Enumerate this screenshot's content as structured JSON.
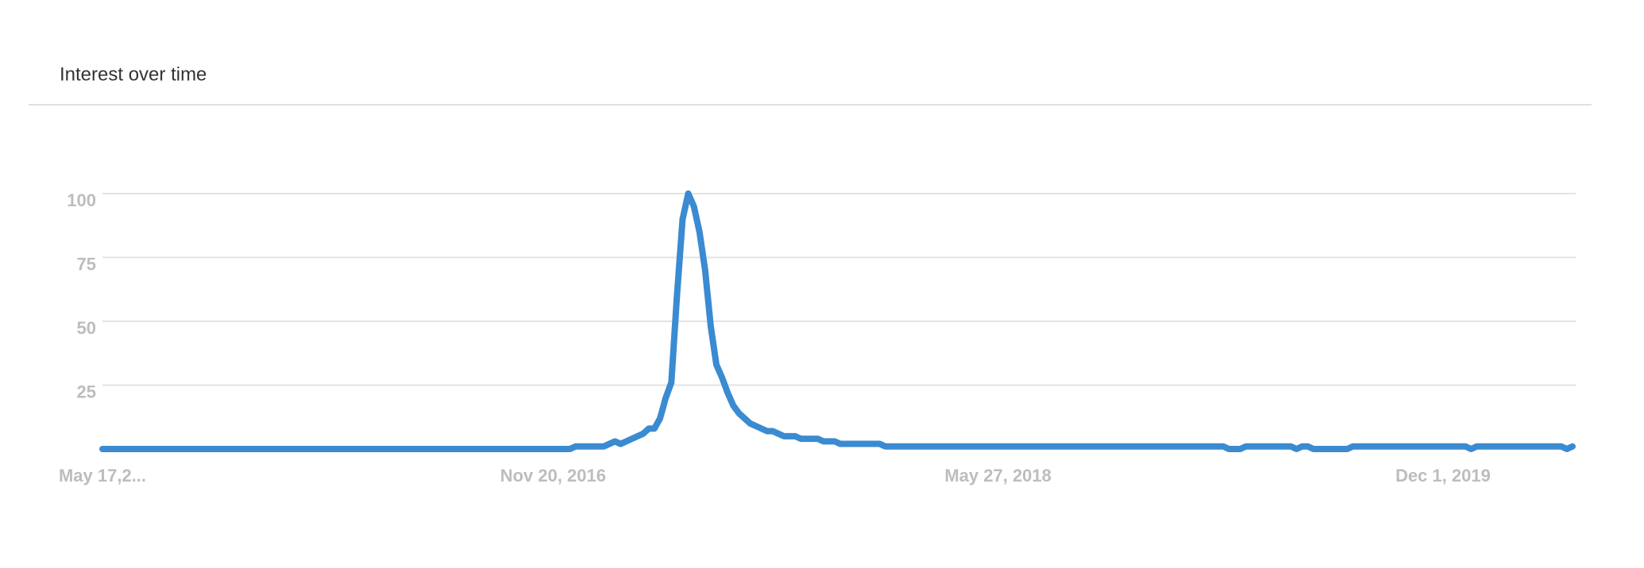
{
  "chart_data": {
    "type": "line",
    "title": "Interest over time",
    "color": "#3a8bd1",
    "grid": true,
    "ylim": [
      0,
      100
    ],
    "yticks": [
      25,
      50,
      75,
      100
    ],
    "categories": [
      "May 17,2...",
      null,
      null,
      null,
      null,
      null,
      null,
      null,
      null,
      null,
      null,
      null,
      null,
      null,
      null,
      null,
      null,
      null,
      null,
      null,
      null,
      null,
      null,
      null,
      null,
      null,
      null,
      null,
      null,
      null,
      null,
      null,
      null,
      null,
      null,
      null,
      null,
      null,
      null,
      null,
      null,
      null,
      null,
      null,
      null,
      null,
      null,
      null,
      null,
      null,
      null,
      null,
      null,
      null,
      null,
      null,
      null,
      null,
      null,
      null,
      null,
      null,
      null,
      null,
      null,
      null,
      null,
      null,
      null,
      null,
      null,
      null,
      null,
      null,
      null,
      null,
      null,
      null,
      null,
      null,
      "Nov 20, 2016",
      null,
      null,
      null,
      null,
      null,
      null,
      null,
      null,
      null,
      null,
      null,
      null,
      null,
      null,
      null,
      null,
      null,
      null,
      null,
      null,
      null,
      null,
      null,
      null,
      null,
      null,
      null,
      null,
      null,
      null,
      null,
      null,
      null,
      null,
      null,
      null,
      null,
      null,
      null,
      null,
      null,
      null,
      null,
      null,
      null,
      null,
      null,
      null,
      null,
      null,
      null,
      null,
      null,
      null,
      null,
      null,
      null,
      null,
      null,
      null,
      null,
      null,
      null,
      null,
      null,
      null,
      null,
      null,
      null,
      null,
      null,
      null,
      null,
      null,
      null,
      null,
      null,
      null,
      "May 27, 2018",
      null,
      null,
      null,
      null,
      null,
      null,
      null,
      null,
      null,
      null,
      null,
      null,
      null,
      null,
      null,
      null,
      null,
      null,
      null,
      null,
      null,
      null,
      null,
      null,
      null,
      null,
      null,
      null,
      null,
      null,
      null,
      null,
      null,
      null,
      null,
      null,
      null,
      null,
      null,
      null,
      null,
      null,
      null,
      null,
      null,
      null,
      null,
      null,
      null,
      null,
      null,
      null,
      null,
      null,
      null,
      null,
      null,
      null,
      null,
      null,
      null,
      null,
      null,
      null,
      null,
      null,
      null,
      null,
      null,
      null,
      null,
      null,
      null,
      null,
      null,
      null,
      null,
      null,
      "Dec 1, 2019",
      null,
      null,
      null,
      null,
      null,
      null,
      null,
      null,
      null,
      null,
      null,
      null,
      null,
      null,
      null,
      null,
      null,
      null,
      null,
      null,
      null,
      null,
      null
    ],
    "values": [
      0,
      0,
      0,
      0,
      0,
      0,
      0,
      0,
      0,
      0,
      0,
      0,
      0,
      0,
      0,
      0,
      0,
      0,
      0,
      0,
      0,
      0,
      0,
      0,
      0,
      0,
      0,
      0,
      0,
      0,
      0,
      0,
      0,
      0,
      0,
      0,
      0,
      0,
      0,
      0,
      0,
      0,
      0,
      0,
      0,
      0,
      0,
      0,
      0,
      0,
      0,
      0,
      0,
      0,
      0,
      0,
      0,
      0,
      0,
      0,
      0,
      0,
      0,
      0,
      0,
      0,
      0,
      0,
      0,
      0,
      0,
      0,
      0,
      0,
      0,
      0,
      0,
      0,
      0,
      0,
      0,
      0,
      0,
      0,
      1,
      1,
      1,
      1,
      1,
      1,
      2,
      3,
      2,
      3,
      4,
      5,
      6,
      8,
      8,
      12,
      20,
      26,
      60,
      90,
      100,
      95,
      85,
      70,
      48,
      33,
      28,
      22,
      17,
      14,
      12,
      10,
      9,
      8,
      7,
      7,
      6,
      5,
      5,
      5,
      4,
      4,
      4,
      4,
      3,
      3,
      3,
      2,
      2,
      2,
      2,
      2,
      2,
      2,
      2,
      1,
      1,
      1,
      1,
      1,
      1,
      1,
      1,
      1,
      1,
      1,
      1,
      1,
      1,
      1,
      1,
      1,
      1,
      1,
      1,
      1,
      1,
      1,
      1,
      1,
      1,
      1,
      1,
      1,
      1,
      1,
      1,
      1,
      1,
      1,
      1,
      1,
      1,
      1,
      1,
      1,
      1,
      1,
      1,
      1,
      1,
      1,
      1,
      1,
      1,
      1,
      1,
      1,
      1,
      1,
      1,
      1,
      1,
      1,
      1,
      1,
      0,
      0,
      0,
      1,
      1,
      1,
      1,
      1,
      1,
      1,
      1,
      1,
      0,
      1,
      1,
      0,
      0,
      0,
      0,
      0,
      0,
      0,
      1,
      1,
      1,
      1,
      1,
      1,
      1,
      1,
      1,
      1,
      1,
      1,
      1,
      1,
      1,
      1,
      1,
      1,
      1,
      1,
      1,
      0,
      1,
      1,
      1,
      1,
      1,
      1,
      1,
      1,
      1,
      1,
      1,
      1,
      1,
      1,
      1,
      1,
      0,
      1
    ]
  }
}
